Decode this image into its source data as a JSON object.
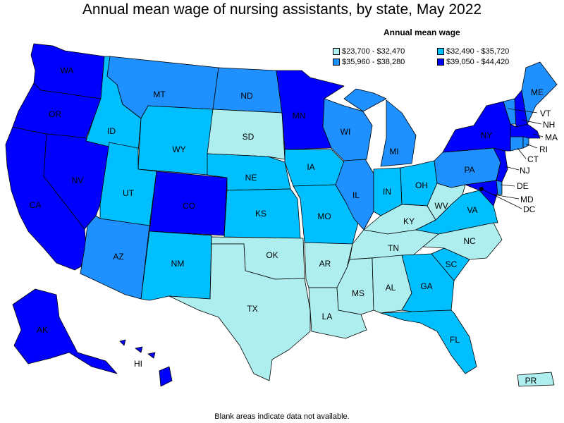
{
  "title": "Annual mean wage of nursing assistants, by state, May 2022",
  "legend": {
    "title": "Annual mean wage",
    "items": [
      {
        "label": "$23,700 - $32,470",
        "color": "#afeeee"
      },
      {
        "label": "$32,490 - $35,720",
        "color": "#00bfff"
      },
      {
        "label": "$35,960 - $38,280",
        "color": "#1e90ff"
      },
      {
        "label": "$39,050 - $44,420",
        "color": "#0000ff"
      }
    ]
  },
  "footnote": "Blank areas indicate data not available.",
  "states": {
    "WA": "WA",
    "OR": "OR",
    "CA": "CA",
    "NV": "NV",
    "ID": "ID",
    "MT": "MT",
    "WY": "WY",
    "UT": "UT",
    "AZ": "AZ",
    "CO": "CO",
    "NM": "NM",
    "ND": "ND",
    "SD": "SD",
    "NE": "NE",
    "KS": "KS",
    "OK": "OK",
    "TX": "TX",
    "MN": "MN",
    "IA": "IA",
    "MO": "MO",
    "AR": "AR",
    "LA": "LA",
    "WI": "WI",
    "IL": "IL",
    "MI": "MI",
    "IN": "IN",
    "OH": "OH",
    "KY": "KY",
    "TN": "TN",
    "MS": "MS",
    "AL": "AL",
    "GA": "GA",
    "FL": "FL",
    "SC": "SC",
    "NC": "NC",
    "VA": "VA",
    "WV": "WV",
    "PA": "PA",
    "NY": "NY",
    "ME": "ME",
    "VT": "VT",
    "NH": "NH",
    "MA": "MA",
    "RI": "RI",
    "CT": "CT",
    "NJ": "NJ",
    "DE": "DE",
    "MD": "MD",
    "DC": "DC",
    "AK": "AK",
    "HI": "HI",
    "PR": "PR"
  }
}
